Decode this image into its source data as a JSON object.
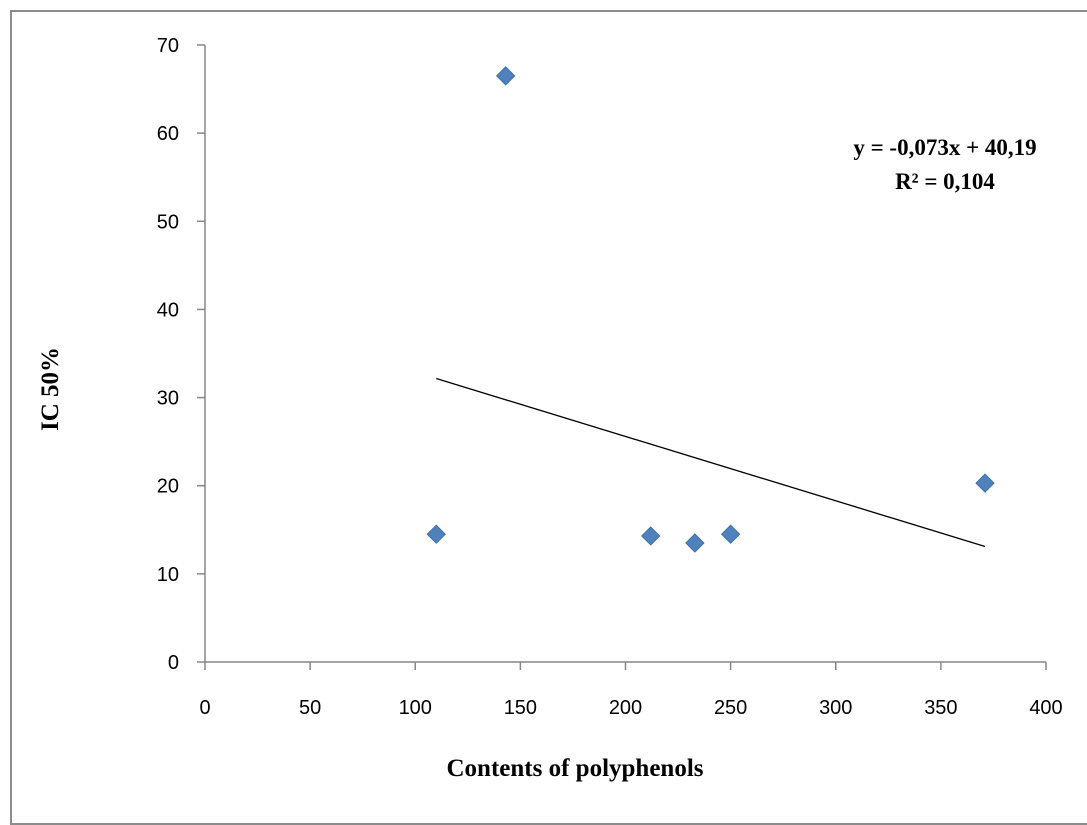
{
  "chart_data": {
    "type": "scatter",
    "title": "",
    "xlabel": "Contents of polyphenols",
    "ylabel": "IC 50%",
    "xlim": [
      0,
      400
    ],
    "ylim": [
      0,
      70
    ],
    "xticks": [
      "0",
      "50",
      "100",
      "150",
      "200",
      "250",
      "300",
      "350",
      "400"
    ],
    "yticks": [
      "0",
      "10",
      "20",
      "30",
      "40",
      "50",
      "60",
      "70"
    ],
    "grid": false,
    "legend": "none",
    "marker": "diamond",
    "marker_color": "#4f81bd",
    "trendline_color": "#000000",
    "points": [
      {
        "x": 110,
        "y": 14.5
      },
      {
        "x": 143,
        "y": 66.5
      },
      {
        "x": 212,
        "y": 14.3
      },
      {
        "x": 233,
        "y": 13.5
      },
      {
        "x": 250,
        "y": 14.5
      },
      {
        "x": 371,
        "y": 20.3
      }
    ],
    "trendline": {
      "slope": -0.073,
      "intercept": 40.19,
      "x_range": [
        110,
        371
      ],
      "equation": "y = -0,073x + 40,19",
      "r_squared": "R² = 0,104"
    }
  }
}
